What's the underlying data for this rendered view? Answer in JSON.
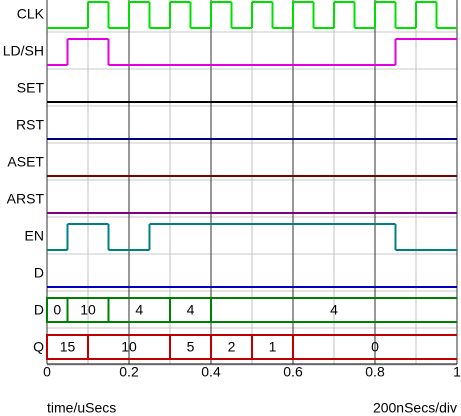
{
  "chart_data": {
    "type": "timing",
    "xlim": [
      0,
      1
    ],
    "xticks": [
      0,
      0.2,
      0.4,
      0.6,
      0.8,
      1
    ],
    "xlabel": "time/uSecs",
    "scale_label": "200nSecs/div",
    "series": [
      {
        "name": "CLK",
        "color": "#00e000",
        "kind": "logic",
        "x": [
          0,
          0.1,
          0.15,
          0.2,
          0.25,
          0.3,
          0.35,
          0.4,
          0.45,
          0.5,
          0.55,
          0.6,
          0.65,
          0.7,
          0.75,
          0.8,
          0.85,
          0.9,
          0.95
        ],
        "values": [
          0,
          1,
          0,
          1,
          0,
          1,
          0,
          1,
          0,
          1,
          0,
          1,
          0,
          1,
          0,
          1,
          0,
          1,
          0
        ]
      },
      {
        "name": "LD/SH",
        "color": "#e000e0",
        "kind": "logic",
        "x": [
          0,
          0.05,
          0.15,
          0.85
        ],
        "values": [
          0,
          1,
          0,
          1
        ]
      },
      {
        "name": "SET",
        "color": "#000000",
        "kind": "logic",
        "x": [
          0
        ],
        "values": [
          0
        ]
      },
      {
        "name": "RST",
        "color": "#000080",
        "kind": "logic",
        "x": [
          0
        ],
        "values": [
          0
        ]
      },
      {
        "name": "ASET",
        "color": "#800000",
        "kind": "logic",
        "x": [
          0
        ],
        "values": [
          0
        ]
      },
      {
        "name": "ARST",
        "color": "#800080",
        "kind": "logic",
        "x": [
          0
        ],
        "values": [
          0
        ]
      },
      {
        "name": "EN",
        "color": "#008080",
        "kind": "logic",
        "x": [
          0,
          0.05,
          0.15,
          0.25,
          0.85
        ],
        "values": [
          0,
          1,
          0,
          1,
          0
        ]
      },
      {
        "name": "D",
        "color": "#0000c0",
        "kind": "logic",
        "x": [
          0
        ],
        "values": [
          0
        ]
      },
      {
        "name": "D",
        "color": "#008000",
        "kind": "bus",
        "x": [
          0,
          0.05,
          0.15,
          0.3,
          0.4
        ],
        "values": [
          0,
          10,
          4,
          4,
          4
        ]
      },
      {
        "name": "Q",
        "color": "#c00000",
        "kind": "bus",
        "x": [
          0,
          0.1,
          0.3,
          0.4,
          0.5,
          0.6
        ],
        "values": [
          15,
          10,
          5,
          2,
          1,
          0
        ]
      }
    ]
  }
}
